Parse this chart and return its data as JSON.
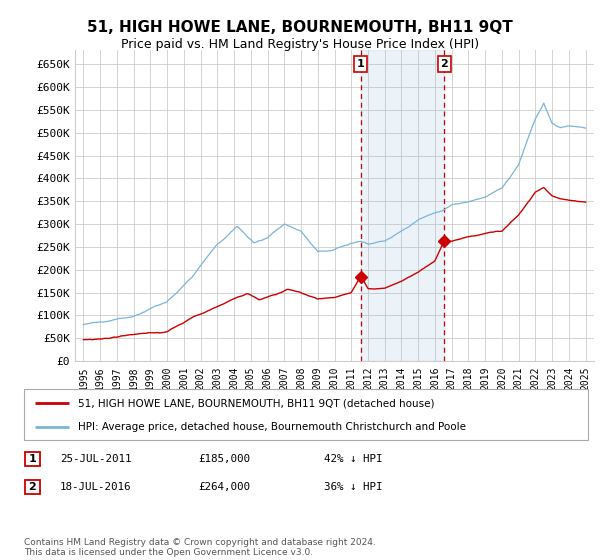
{
  "title": "51, HIGH HOWE LANE, BOURNEMOUTH, BH11 9QT",
  "subtitle": "Price paid vs. HM Land Registry's House Price Index (HPI)",
  "ylabel_ticks": [
    "£0",
    "£50K",
    "£100K",
    "£150K",
    "£200K",
    "£250K",
    "£300K",
    "£350K",
    "£400K",
    "£450K",
    "£500K",
    "£550K",
    "£600K",
    "£650K"
  ],
  "ytick_values": [
    0,
    50000,
    100000,
    150000,
    200000,
    250000,
    300000,
    350000,
    400000,
    450000,
    500000,
    550000,
    600000,
    650000
  ],
  "xlim_start": 1994.5,
  "xlim_end": 2025.5,
  "ylim": [
    0,
    680000
  ],
  "hpi_color": "#7ab5d9",
  "hpi_fill_color": "#dceef7",
  "price_color": "#cc0000",
  "vline_color": "#cc0000",
  "grid_color": "#cccccc",
  "background_color": "#ffffff",
  "sale1_year": 2011.57,
  "sale1_price": 185000,
  "sale1_label": "1",
  "sale2_year": 2016.55,
  "sale2_price": 264000,
  "sale2_label": "2",
  "legend_line1": "51, HIGH HOWE LANE, BOURNEMOUTH, BH11 9QT (detached house)",
  "legend_line2": "HPI: Average price, detached house, Bournemouth Christchurch and Poole",
  "table_row1": [
    "1",
    "25-JUL-2011",
    "£185,000",
    "42% ↓ HPI"
  ],
  "table_row2": [
    "2",
    "18-JUL-2016",
    "£264,000",
    "36% ↓ HPI"
  ],
  "footnote": "Contains HM Land Registry data © Crown copyright and database right 2024.\nThis data is licensed under the Open Government Licence v3.0.",
  "title_fontsize": 11,
  "subtitle_fontsize": 9,
  "tick_fontsize": 8
}
